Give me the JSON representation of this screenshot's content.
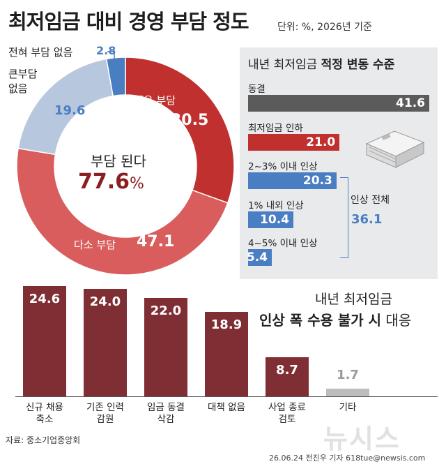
{
  "title": "최저임금 대비 경영 부담 정도",
  "unit_note": "단위: %, 2026년 기준",
  "donut": {
    "center_label": "부담 된다",
    "center_value": "77.6",
    "center_unit": "%",
    "labels": {
      "none": "전혀 부담 없음",
      "none_value": "2.8",
      "little": "큰부담\n없음",
      "little_value": "19.6",
      "very": "매우 부담",
      "very_value": "30.5",
      "some": "다소 부담",
      "some_value": "47.1"
    }
  },
  "panel": {
    "title_normal": "내년 최저임금",
    "title_bold": "적정 변동 수준",
    "group_label": "인상 전체",
    "group_value": "36.1"
  },
  "lower": {
    "title_line1": "내년 최저임금",
    "title_line2_bold": "인상 폭 수용 불가 시",
    "title_line2_normal": "대응"
  },
  "source": "자료: 중소기업중앙회",
  "credit": "26.06.24 전진우 기자 618tue@newsis.com",
  "logo": "뉴시스",
  "colors": {
    "dark_red": "#c0302e",
    "light_red": "#d95d5d",
    "light_blue": "#b7c7de",
    "blue": "#4a7ec2",
    "gray": "#5b5b5b",
    "maroon": "#7f2f34",
    "light_gray": "#bdbdbd"
  },
  "chart_data": [
    {
      "type": "pie",
      "title": "최저임금 대비 경영 부담 정도",
      "categories": [
        "매우 부담",
        "다소 부담",
        "큰부담 없음",
        "전혀 부담 없음"
      ],
      "values": [
        30.5,
        47.1,
        19.6,
        2.8
      ],
      "unit": "%",
      "annotation": "부담 된다 77.6%"
    },
    {
      "type": "bar",
      "orientation": "horizontal",
      "title": "내년 최저임금 적정 변동 수준",
      "categories": [
        "동결",
        "최저임금 인하",
        "2~3% 이내 인상",
        "1% 내외 인상",
        "4~5% 이내 인상"
      ],
      "values": [
        41.6,
        21.0,
        20.3,
        10.4,
        5.4
      ],
      "labels": [
        "41.6",
        "21.0",
        "20.3",
        "10.4",
        "5.4"
      ],
      "annotation": "인상 전체 36.1"
    },
    {
      "type": "bar",
      "title": "내년 최저임금 인상 폭 수용 불가 시 대응",
      "categories": [
        "신규 채용\n축소",
        "기존 인력\n감원",
        "임금 동결\n삭감",
        "대책 없음",
        "사업 종료\n검토",
        "기타"
      ],
      "values": [
        24.6,
        24.0,
        22.0,
        18.9,
        8.7,
        1.7
      ],
      "labels": [
        "24.6",
        "24.0",
        "22.0",
        "18.9",
        "8.7",
        "1.7"
      ]
    }
  ]
}
